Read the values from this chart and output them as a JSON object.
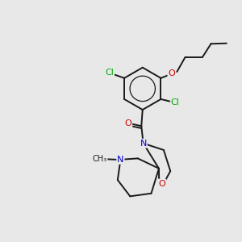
{
  "background_color": "#e8e8e8",
  "bond_color": "#1a1a1a",
  "atom_colors": {
    "Cl": "#00aa00",
    "O": "#cc0000",
    "N": "#0000cc",
    "C": "#1a1a1a"
  },
  "figsize": [
    3.0,
    3.0
  ],
  "dpi": 100
}
